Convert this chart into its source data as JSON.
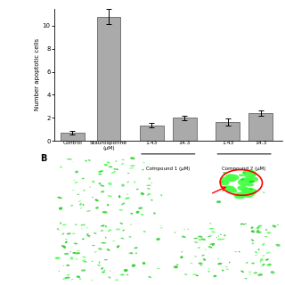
{
  "bar_values": [
    0.7,
    10.8,
    1.35,
    2.0,
    1.65,
    2.4
  ],
  "bar_errors": [
    0.15,
    0.65,
    0.18,
    0.18,
    0.32,
    0.22
  ],
  "bar_color": "#aaaaaa",
  "bar_edge_color": "#666666",
  "ylim": [
    0,
    11.5
  ],
  "yticks": [
    0,
    2,
    4,
    6,
    8,
    10
  ],
  "ylabel": "Number apoptotic cells",
  "bg_color": "#ffffff",
  "x_positions": [
    0,
    1.1,
    2.4,
    3.4,
    4.7,
    5.7
  ],
  "bar_width": 0.72,
  "xlim": [
    -0.55,
    6.35
  ]
}
